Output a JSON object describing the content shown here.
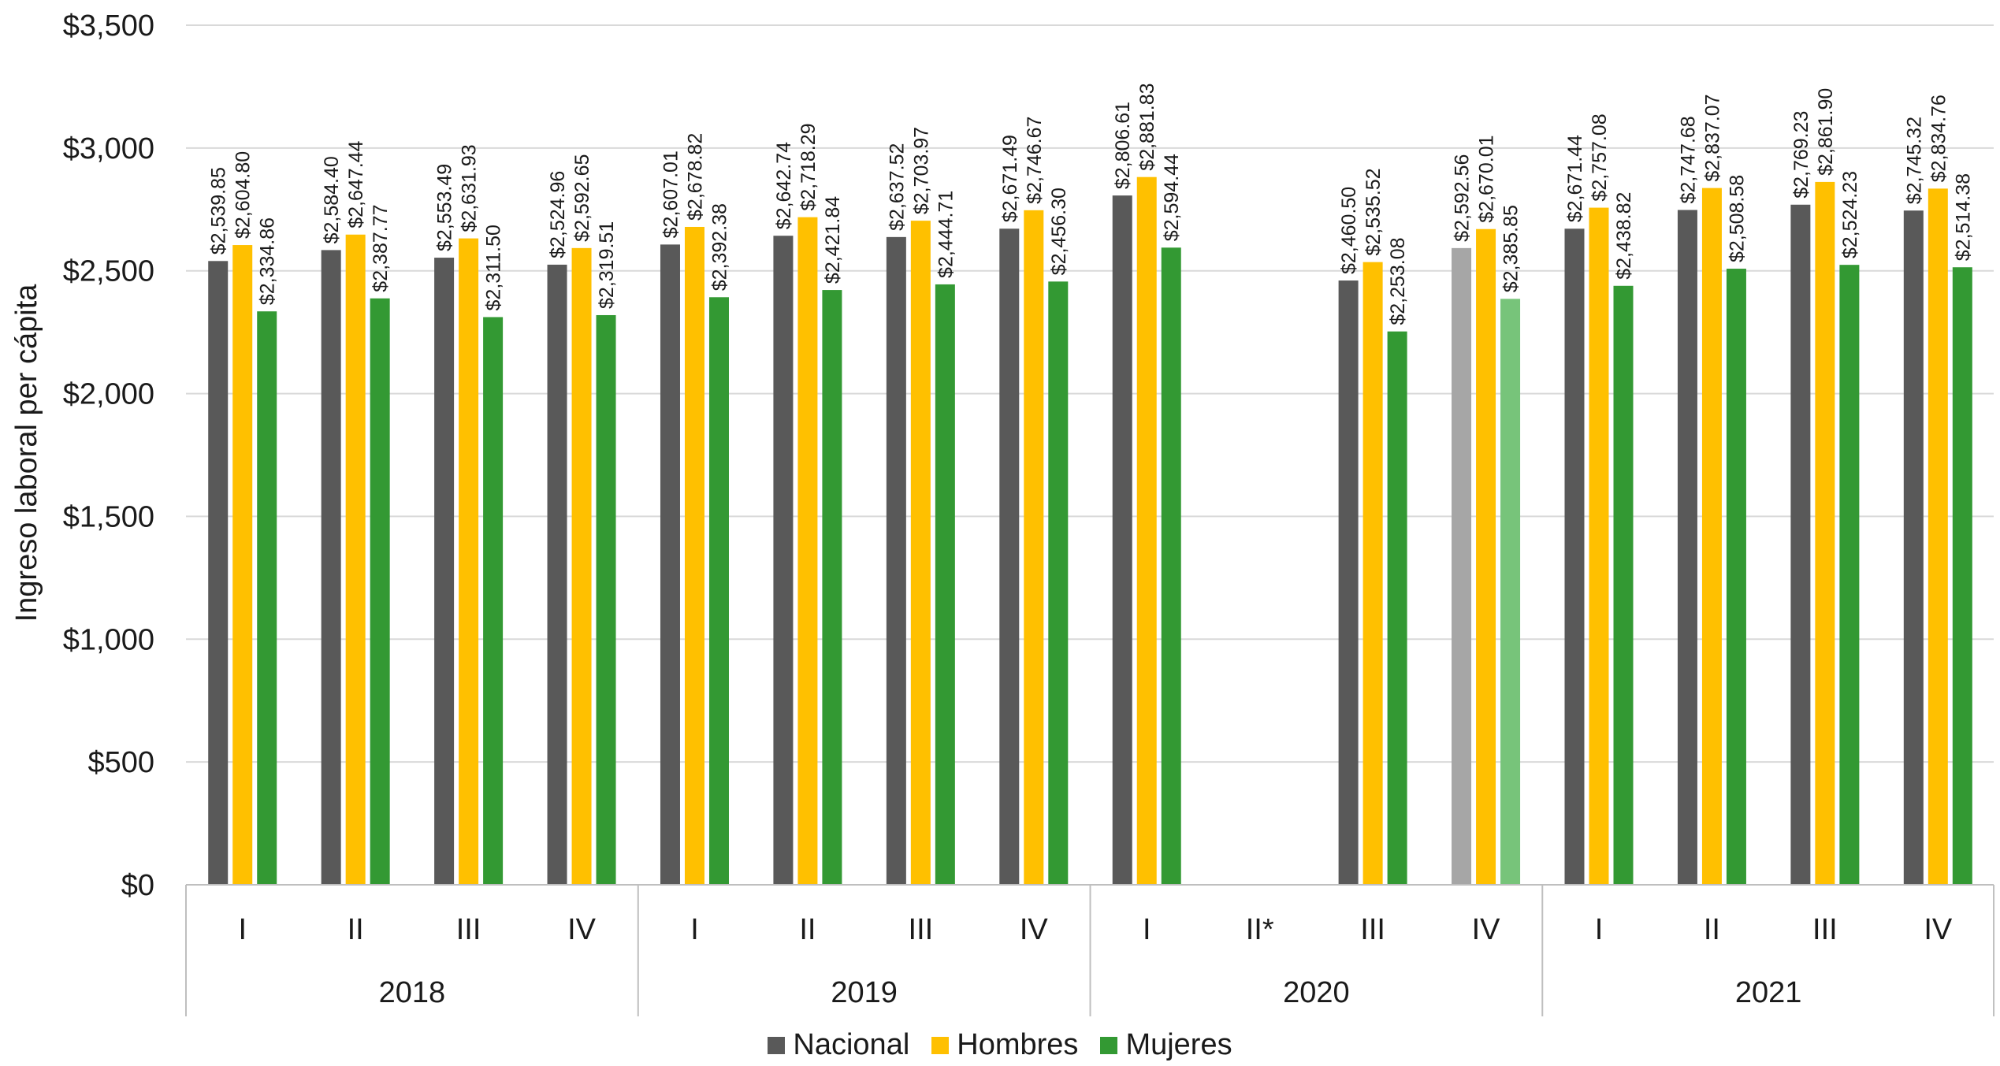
{
  "chart_data": {
    "type": "bar",
    "ylabel": "Ingreso laboral per cápita",
    "ylim": [
      0,
      3500
    ],
    "y_ticks": [
      0,
      500,
      1000,
      1500,
      2000,
      2500,
      3000,
      3500
    ],
    "y_tick_labels": [
      "$0",
      "$500",
      "$1,000",
      "$1,500",
      "$2,000",
      "$2,500",
      "$3,000",
      "$3,500"
    ],
    "grid": true,
    "legend_position": "bottom",
    "years": [
      {
        "label": "2018",
        "quarters": [
          "I",
          "II",
          "III",
          "IV"
        ]
      },
      {
        "label": "2019",
        "quarters": [
          "I",
          "II",
          "III",
          "IV"
        ]
      },
      {
        "label": "2020",
        "quarters": [
          "I",
          "II*",
          "III",
          "IV"
        ]
      },
      {
        "label": "2021",
        "quarters": [
          "I",
          "II",
          "III",
          "IV"
        ]
      }
    ],
    "categories": [
      "2018 I",
      "2018 II",
      "2018 III",
      "2018 IV",
      "2019 I",
      "2019 II",
      "2019 III",
      "2019 IV",
      "2020 I",
      "2020 II*",
      "2020 III",
      "2020 IV",
      "2021 I",
      "2021 II",
      "2021 III",
      "2021 IV"
    ],
    "series": [
      {
        "name": "Nacional",
        "color": "#595959",
        "light_color": "#a6a6a6",
        "values": [
          2539.85,
          2584.4,
          2553.49,
          2524.96,
          2607.01,
          2642.74,
          2637.52,
          2671.49,
          2806.61,
          null,
          2460.5,
          2592.56,
          2671.44,
          2747.68,
          2769.23,
          2745.32
        ],
        "labels": [
          "$2,539.85",
          "$2,584.40",
          "$2,553.49",
          "$2,524.96",
          "$2,607.01",
          "$2,642.74",
          "$2,637.52",
          "$2,671.49",
          "$2,806.61",
          "",
          "$2,460.50",
          "$2,592.56",
          "$2,671.44",
          "$2,747.68",
          "$2,769.23",
          "$2,745.32"
        ]
      },
      {
        "name": "Hombres",
        "color": "#ffc000",
        "light_color": "#ffc000",
        "values": [
          2604.8,
          2647.44,
          2631.93,
          2592.65,
          2678.82,
          2718.29,
          2703.97,
          2746.67,
          2881.83,
          null,
          2535.52,
          2670.01,
          2757.08,
          2837.07,
          2861.9,
          2834.76
        ],
        "labels": [
          "$2,604.80",
          "$2,647.44",
          "$2,631.93",
          "$2,592.65",
          "$2,678.82",
          "$2,718.29",
          "$2,703.97",
          "$2,746.67",
          "$2,881.83",
          "",
          "$2,535.52",
          "$2,670.01",
          "$2,757.08",
          "$2,837.07",
          "$2,861.90",
          "$2,834.76"
        ]
      },
      {
        "name": "Mujeres",
        "color": "#339933",
        "light_color": "#77c47a",
        "values": [
          2334.86,
          2387.77,
          2311.5,
          2319.51,
          2392.38,
          2421.84,
          2444.71,
          2456.3,
          2594.44,
          null,
          2253.08,
          2385.85,
          2438.82,
          2508.58,
          2524.23,
          2514.38
        ],
        "labels": [
          "$2,334.86",
          "$2,387.77",
          "$2,311.50",
          "$2,319.51",
          "$2,392.38",
          "$2,421.84",
          "$2,444.71",
          "$2,456.30",
          "$2,594.44",
          "",
          "$2,253.08",
          "$2,385.85",
          "$2,438.82",
          "$2,508.58",
          "$2,524.23",
          "$2,514.38"
        ]
      }
    ],
    "highlighted_category_index": 11
  }
}
